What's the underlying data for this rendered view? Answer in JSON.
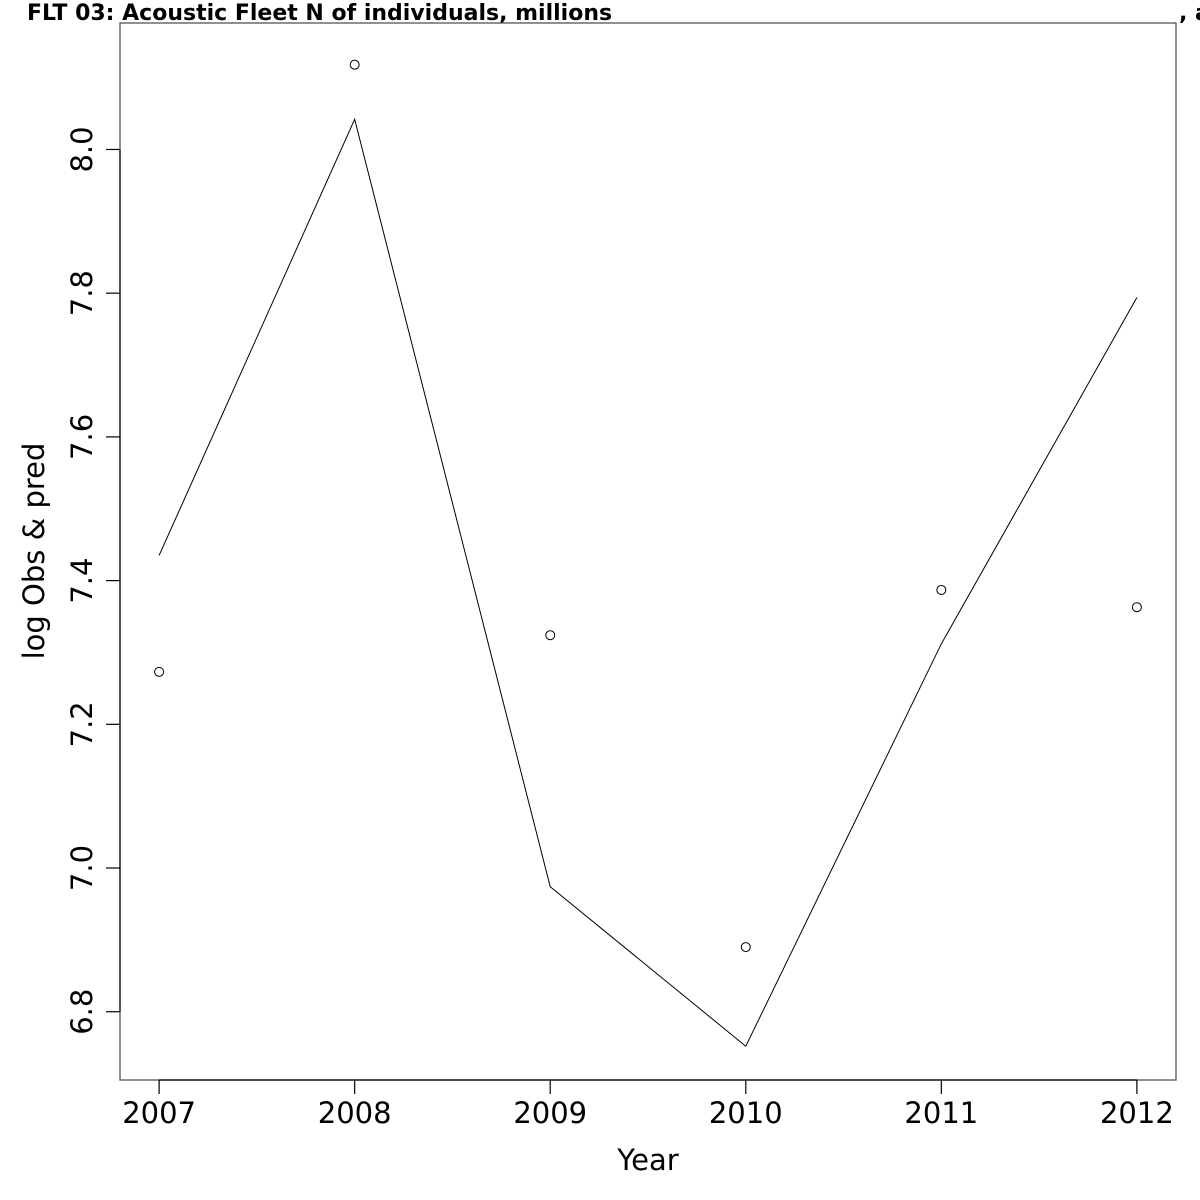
{
  "chart_data": {
    "type": "line",
    "title": "FLT 03: Acoustic Fleet   N of individuals, millions",
    "title_suffix": ", a",
    "xlabel": "Year",
    "ylabel": "log Obs & pred",
    "x": [
      2007,
      2008,
      2009,
      2010,
      2011,
      2012
    ],
    "x_tick_labels": [
      "2007",
      "2008",
      "2009",
      "2010",
      "2011",
      "2012"
    ],
    "y_ticks": [
      6.8,
      7.0,
      7.2,
      7.4,
      7.6,
      7.8,
      8.0
    ],
    "y_tick_labels": [
      "6.8",
      "7.0",
      "7.2",
      "7.4",
      "7.6",
      "7.8",
      "8.0"
    ],
    "xlim": [
      2006.8,
      2012.2
    ],
    "ylim": [
      6.705,
      8.176
    ],
    "series": [
      {
        "type": "scatter",
        "marker": "open-circle",
        "values": [
          7.273,
          8.118,
          7.324,
          6.89,
          7.387,
          7.363
        ]
      },
      {
        "type": "line",
        "values": [
          7.435,
          8.042,
          6.974,
          6.752,
          7.312,
          7.794
        ]
      }
    ],
    "grid": false,
    "color": "#000000"
  }
}
